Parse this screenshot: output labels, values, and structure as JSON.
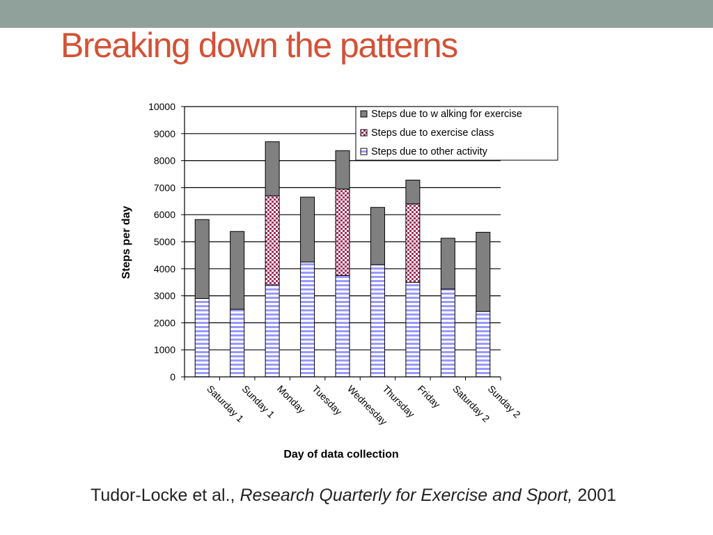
{
  "slide": {
    "title": "Breaking down the patterns",
    "citation_authors": "Tudor-Locke et al., ",
    "citation_journal": "Research Quarterly for Exercise and Sport,",
    "citation_year": " 2001"
  },
  "colors": {
    "top_bar": "#8fa19a",
    "title": "#d25237",
    "walking": "#808080",
    "exercise_class": "#a0305a",
    "other": "#9999ff"
  },
  "chart_data": {
    "type": "bar",
    "stacked": true,
    "categories": [
      "Saturday 1",
      "Sunday 1",
      "Monday",
      "Tuesday",
      "Wednesday",
      "Thursday",
      "Friday",
      "Saturday 2",
      "Sunday 2"
    ],
    "series": [
      {
        "name": "Steps due to other activity",
        "values": [
          2900,
          2500,
          3400,
          4250,
          3750,
          4150,
          3500,
          3250,
          2420
        ]
      },
      {
        "name": "Steps due to exercise class",
        "values": [
          0,
          0,
          3300,
          0,
          3200,
          0,
          2900,
          0,
          0
        ]
      },
      {
        "name": "Steps due to w alking for exercise",
        "values": [
          2920,
          2880,
          2000,
          2400,
          1420,
          2120,
          880,
          1880,
          2930
        ]
      }
    ],
    "xlabel": "Day of data collection",
    "ylabel": "Steps per day",
    "ylim": [
      0,
      10000
    ],
    "yticks": [
      0,
      1000,
      2000,
      3000,
      4000,
      5000,
      6000,
      7000,
      8000,
      9000,
      10000
    ],
    "grid": true,
    "legend_entries": [
      "Steps due to w alking for exercise",
      "Steps due to exercise class",
      "Steps due to other activity"
    ],
    "legend_position": "top-right"
  }
}
